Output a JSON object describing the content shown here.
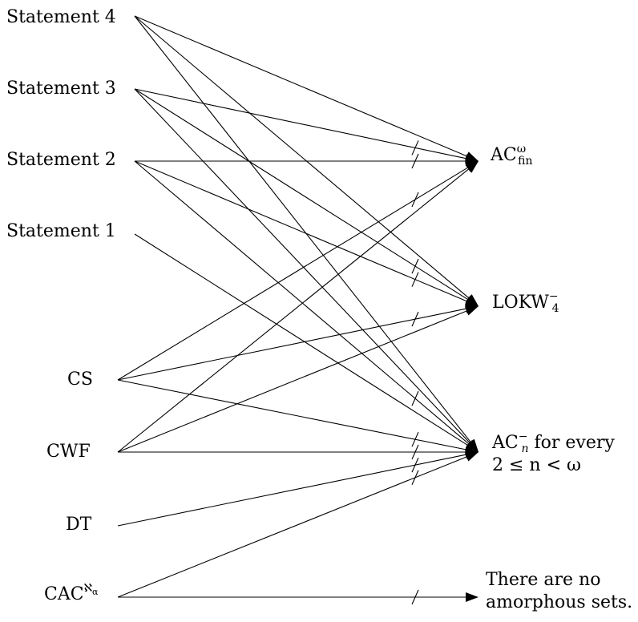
{
  "left_nodes": {
    "s4": "Statement 4",
    "s3": "Statement 3",
    "s2": "Statement 2",
    "s1": "Statement 1",
    "cs": "CS",
    "cwf": "CWF",
    "dt": "DT",
    "cac": {
      "base": "CAC",
      "sup": "ℵ",
      "sup_sub": "α"
    }
  },
  "right_nodes": {
    "acfin": {
      "base": "AC",
      "sup": "ω",
      "sub": "fin"
    },
    "lokw": {
      "base": "LOKW",
      "sup": "−",
      "sub": "4"
    },
    "acn": {
      "base": "AC",
      "sup": "−",
      "sub": "n",
      "tail": " for every",
      "line2": "2 ≤ n < ω"
    },
    "amorph": {
      "line1": "There are no",
      "line2": "amorphous sets."
    }
  },
  "arrows": [
    {
      "from": "s4",
      "to": "acfin",
      "negated": false
    },
    {
      "from": "s4",
      "to": "lokw",
      "negated": false
    },
    {
      "from": "s4",
      "to": "acn",
      "negated": false
    },
    {
      "from": "s3",
      "to": "acfin",
      "negated": true
    },
    {
      "from": "s3",
      "to": "lokw",
      "negated": true
    },
    {
      "from": "s3",
      "to": "acn",
      "negated": false
    },
    {
      "from": "s2",
      "to": "acfin",
      "negated": true
    },
    {
      "from": "s2",
      "to": "lokw",
      "negated": true
    },
    {
      "from": "s2",
      "to": "acn",
      "negated": true
    },
    {
      "from": "s1",
      "to": "acn",
      "negated": false
    },
    {
      "from": "cs",
      "to": "acfin",
      "negated": true
    },
    {
      "from": "cs",
      "to": "lokw",
      "negated": true
    },
    {
      "from": "cs",
      "to": "acn",
      "negated": true
    },
    {
      "from": "cwf",
      "to": "acfin",
      "negated": false
    },
    {
      "from": "cwf",
      "to": "lokw",
      "negated": false
    },
    {
      "from": "cwf",
      "to": "acn",
      "negated": true
    },
    {
      "from": "dt",
      "to": "acn",
      "negated": true
    },
    {
      "from": "cac",
      "to": "acn",
      "negated": true
    },
    {
      "from": "cac",
      "to": "amorph",
      "negated": true
    }
  ]
}
